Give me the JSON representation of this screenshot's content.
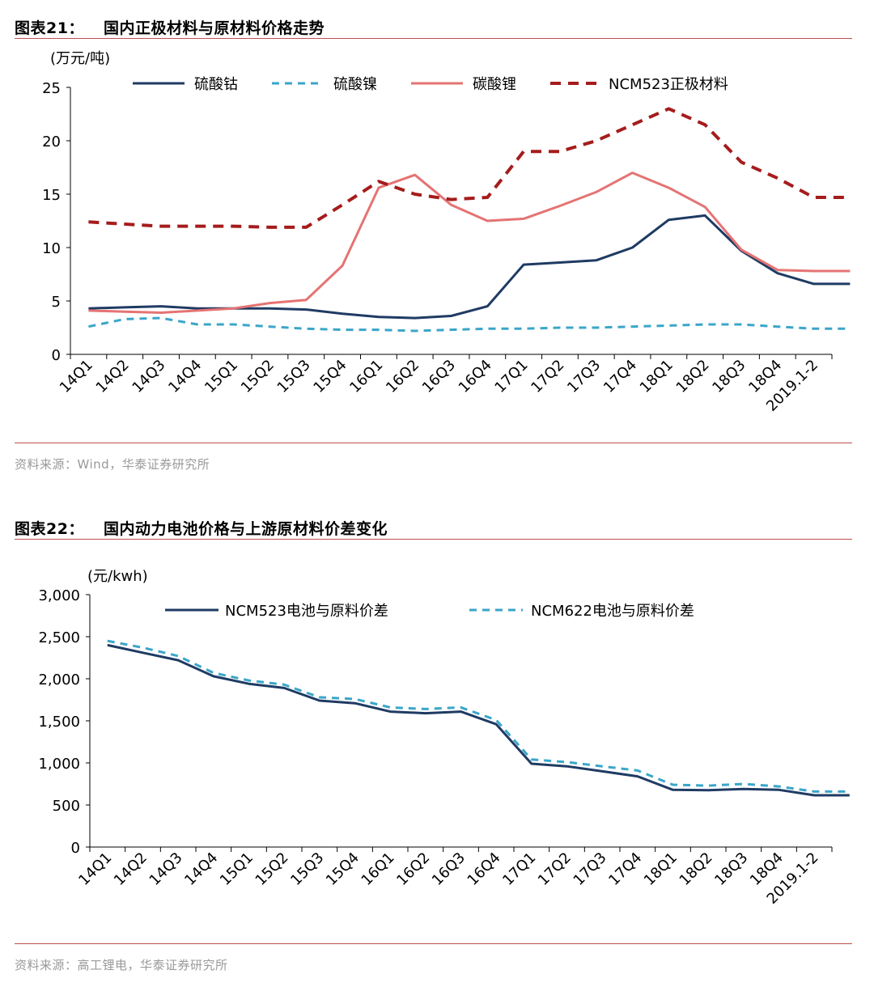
{
  "figure21": {
    "label": "图表21：",
    "title": "国内正极材料与原材料价格走势",
    "source": "资料来源：Wind，华泰证券研究所"
  },
  "figure22": {
    "label": "图表22：",
    "title": "国内动力电池价格与上游原材料价差变化",
    "source": "资料来源：高工锂电，华泰证券研究所"
  },
  "chart_data": [
    {
      "type": "line",
      "title": "",
      "unit_label": "(万元/吨)",
      "xlabel": "",
      "ylabel": "",
      "ylim": [
        0,
        25
      ],
      "yticks": [
        "0",
        "5",
        "10",
        "15",
        "20",
        "25"
      ],
      "categories": [
        "14Q1",
        "14Q2",
        "14Q3",
        "14Q4",
        "15Q1",
        "15Q2",
        "15Q3",
        "15Q4",
        "16Q1",
        "16Q2",
        "16Q3",
        "16Q4",
        "17Q1",
        "17Q2",
        "17Q3",
        "17Q4",
        "18Q1",
        "18Q2",
        "18Q3",
        "18Q4",
        "2019.1-2"
      ],
      "x_positions": [
        0,
        1,
        2,
        3,
        4,
        5,
        6,
        7,
        8,
        9,
        10,
        11,
        12,
        13,
        14,
        15,
        16,
        17,
        18,
        19,
        20,
        21
      ],
      "grid": false,
      "legend": "top",
      "series": [
        {
          "name": "硫酸钴",
          "color": "#1f3b63",
          "dash": "solid",
          "x": [
            0,
            1,
            2,
            3,
            4,
            5,
            6,
            7,
            8,
            9,
            10,
            11,
            12,
            13,
            14,
            15,
            16,
            17,
            18,
            19,
            20,
            21
          ],
          "values": [
            4.3,
            4.4,
            4.5,
            4.3,
            4.3,
            4.3,
            4.2,
            3.8,
            3.5,
            3.4,
            3.6,
            4.5,
            8.4,
            8.6,
            8.8,
            10.0,
            12.6,
            13.0,
            9.7,
            7.6,
            6.6,
            6.6
          ]
        },
        {
          "name": "硫酸镍",
          "color": "#3aa6c9",
          "dash": "dashed",
          "x": [
            0,
            1,
            2,
            3,
            4,
            5,
            6,
            7,
            8,
            9,
            10,
            11,
            12,
            13,
            14,
            15,
            16,
            17,
            18,
            19,
            20,
            21
          ],
          "values": [
            2.6,
            3.3,
            3.4,
            2.8,
            2.8,
            2.6,
            2.4,
            2.3,
            2.3,
            2.2,
            2.3,
            2.4,
            2.4,
            2.5,
            2.5,
            2.6,
            2.7,
            2.8,
            2.8,
            2.6,
            2.4,
            2.4
          ]
        },
        {
          "name": "碳酸锂",
          "color": "#e57373",
          "dash": "solid",
          "x": [
            0,
            1,
            2,
            3,
            4,
            5,
            6,
            7,
            8,
            9,
            10,
            11,
            12,
            13,
            14,
            15,
            16,
            17,
            18,
            19,
            20,
            21
          ],
          "values": [
            4.1,
            4.0,
            3.9,
            4.1,
            4.3,
            4.8,
            5.1,
            8.3,
            15.6,
            16.8,
            14.0,
            12.5,
            12.7,
            13.9,
            15.2,
            17.0,
            15.6,
            13.8,
            9.8,
            7.9,
            7.8,
            7.8
          ]
        },
        {
          "name": "NCM523正极材料",
          "color": "#a51c1c",
          "dash": "dashed",
          "x": [
            0,
            1,
            2,
            3,
            4,
            5,
            6,
            7,
            8,
            9,
            10,
            11,
            12,
            13,
            14,
            15,
            16,
            17,
            18,
            19,
            20,
            21
          ],
          "values": [
            12.4,
            12.2,
            12.0,
            12.0,
            12.0,
            11.9,
            11.9,
            14.0,
            16.2,
            15.0,
            14.5,
            14.7,
            19.0,
            19.0,
            20.0,
            21.5,
            23.0,
            21.5,
            18.0,
            16.5,
            14.7,
            14.7
          ]
        }
      ]
    },
    {
      "type": "line",
      "title": "",
      "unit_label": "(元/kwh)",
      "xlabel": "",
      "ylabel": "",
      "ylim": [
        0,
        3000
      ],
      "yticks": [
        "0",
        "500",
        "1,000",
        "1,500",
        "2,000",
        "2,500",
        "3,000"
      ],
      "categories": [
        "14Q1",
        "14Q2",
        "14Q3",
        "14Q4",
        "15Q1",
        "15Q2",
        "15Q3",
        "15Q4",
        "16Q1",
        "16Q2",
        "16Q3",
        "16Q4",
        "17Q1",
        "17Q2",
        "17Q3",
        "17Q4",
        "18Q1",
        "18Q2",
        "18Q3",
        "18Q4",
        "2019.1-2"
      ],
      "grid": false,
      "legend": "top",
      "series": [
        {
          "name": "NCM523电池与原料价差",
          "color": "#1f3b63",
          "dash": "solid",
          "x": [
            0,
            1,
            2,
            3,
            4,
            5,
            6,
            7,
            8,
            9,
            10,
            11,
            12,
            13,
            14,
            15,
            16,
            17,
            18,
            19,
            20,
            21
          ],
          "values": [
            2400,
            2310,
            2220,
            2030,
            1940,
            1890,
            1740,
            1710,
            1610,
            1590,
            1610,
            1460,
            990,
            960,
            900,
            840,
            680,
            675,
            690,
            680,
            615,
            615
          ]
        },
        {
          "name": "NCM622电池与原料价差",
          "color": "#3aa6c9",
          "dash": "dashed",
          "x": [
            0,
            1,
            2,
            3,
            4,
            5,
            6,
            7,
            8,
            9,
            10,
            11,
            12,
            13,
            14,
            15,
            16,
            17,
            18,
            19,
            20,
            21
          ],
          "values": [
            2450,
            2370,
            2270,
            2070,
            1980,
            1930,
            1780,
            1760,
            1660,
            1640,
            1660,
            1510,
            1040,
            1010,
            960,
            910,
            740,
            730,
            750,
            720,
            660,
            660
          ]
        }
      ]
    }
  ]
}
